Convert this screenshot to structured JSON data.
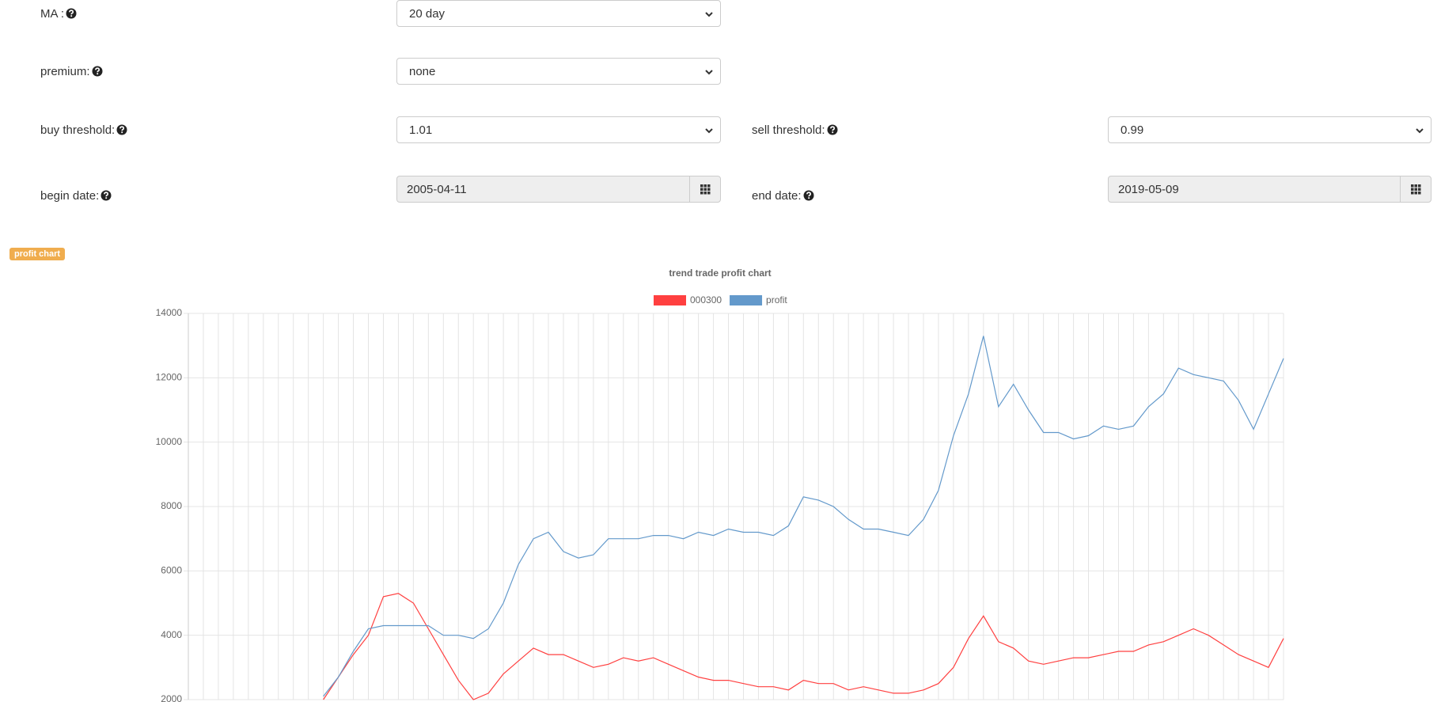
{
  "form": {
    "fields": [
      {
        "label": "MA :",
        "value": "20 day"
      },
      {
        "label": "premium:",
        "value": "none"
      },
      {
        "label": "buy threshold:",
        "value": "1.01"
      },
      {
        "label": "sell threshold:",
        "value": "0.99"
      },
      {
        "label": "begin date:",
        "value": "2005-04-11"
      },
      {
        "label": "end date:",
        "value": "2019-05-09"
      }
    ]
  },
  "badge": "profit chart",
  "chart_data": {
    "type": "line",
    "title": "trend trade profit chart",
    "legend": "top",
    "grid": true,
    "categories": [
      null,
      null,
      null,
      null,
      null,
      null,
      null,
      null,
      null,
      null,
      null,
      null,
      null,
      null,
      null,
      null,
      null,
      null,
      null,
      null,
      null,
      null,
      null,
      null,
      null,
      null,
      null,
      null,
      null,
      null,
      null,
      null,
      null,
      null,
      null,
      null,
      null,
      null,
      null,
      null,
      null,
      null,
      null,
      null,
      null,
      null,
      null,
      null,
      null,
      null,
      null,
      null,
      null,
      null,
      null,
      null,
      null,
      null,
      null,
      null,
      null,
      null,
      null,
      null,
      null,
      null,
      null,
      null,
      null,
      null,
      null,
      null,
      null,
      null
    ],
    "series": [
      {
        "name": "000300",
        "color": "#ff4040",
        "values": [
          null,
          null,
          null,
          null,
          null,
          null,
          null,
          null,
          null,
          2000,
          2700,
          3400,
          4000,
          5200,
          5300,
          5000,
          4200,
          3400,
          2600,
          2000,
          2200,
          2800,
          3200,
          3600,
          3400,
          3400,
          3200,
          3000,
          3100,
          3300,
          3200,
          3300,
          3100,
          2900,
          2700,
          2600,
          2600,
          2500,
          2400,
          2400,
          2300,
          2600,
          2500,
          2500,
          2300,
          2400,
          2300,
          2200,
          2200,
          2300,
          2500,
          3000,
          3900,
          4600,
          3800,
          3600,
          3200,
          3100,
          3200,
          3300,
          3300,
          3400,
          3500,
          3500,
          3700,
          3800,
          4000,
          4200,
          4000,
          3700,
          3400,
          3200,
          3000,
          3900
        ]
      },
      {
        "name": "profit",
        "color": "#6399cb",
        "values": [
          null,
          null,
          null,
          null,
          null,
          null,
          null,
          null,
          null,
          2100,
          2700,
          3500,
          4200,
          4300,
          4300,
          4300,
          4300,
          4000,
          4000,
          3900,
          4200,
          5000,
          6200,
          7000,
          7200,
          6600,
          6400,
          6500,
          7000,
          7000,
          7000,
          7100,
          7100,
          7000,
          7200,
          7100,
          7300,
          7200,
          7200,
          7100,
          7400,
          8300,
          8200,
          8000,
          7600,
          7300,
          7300,
          7200,
          7100,
          7600,
          8500,
          10200,
          11500,
          13300,
          11100,
          11800,
          11000,
          10300,
          10300,
          10100,
          10200,
          10500,
          10400,
          10500,
          11100,
          11500,
          12300,
          12100,
          12000,
          11900,
          11300,
          10400,
          11500,
          12600
        ]
      }
    ],
    "ylim": [
      2000,
      14000
    ],
    "yticks": [
      2000,
      4000,
      6000,
      8000,
      10000,
      12000,
      14000
    ]
  }
}
